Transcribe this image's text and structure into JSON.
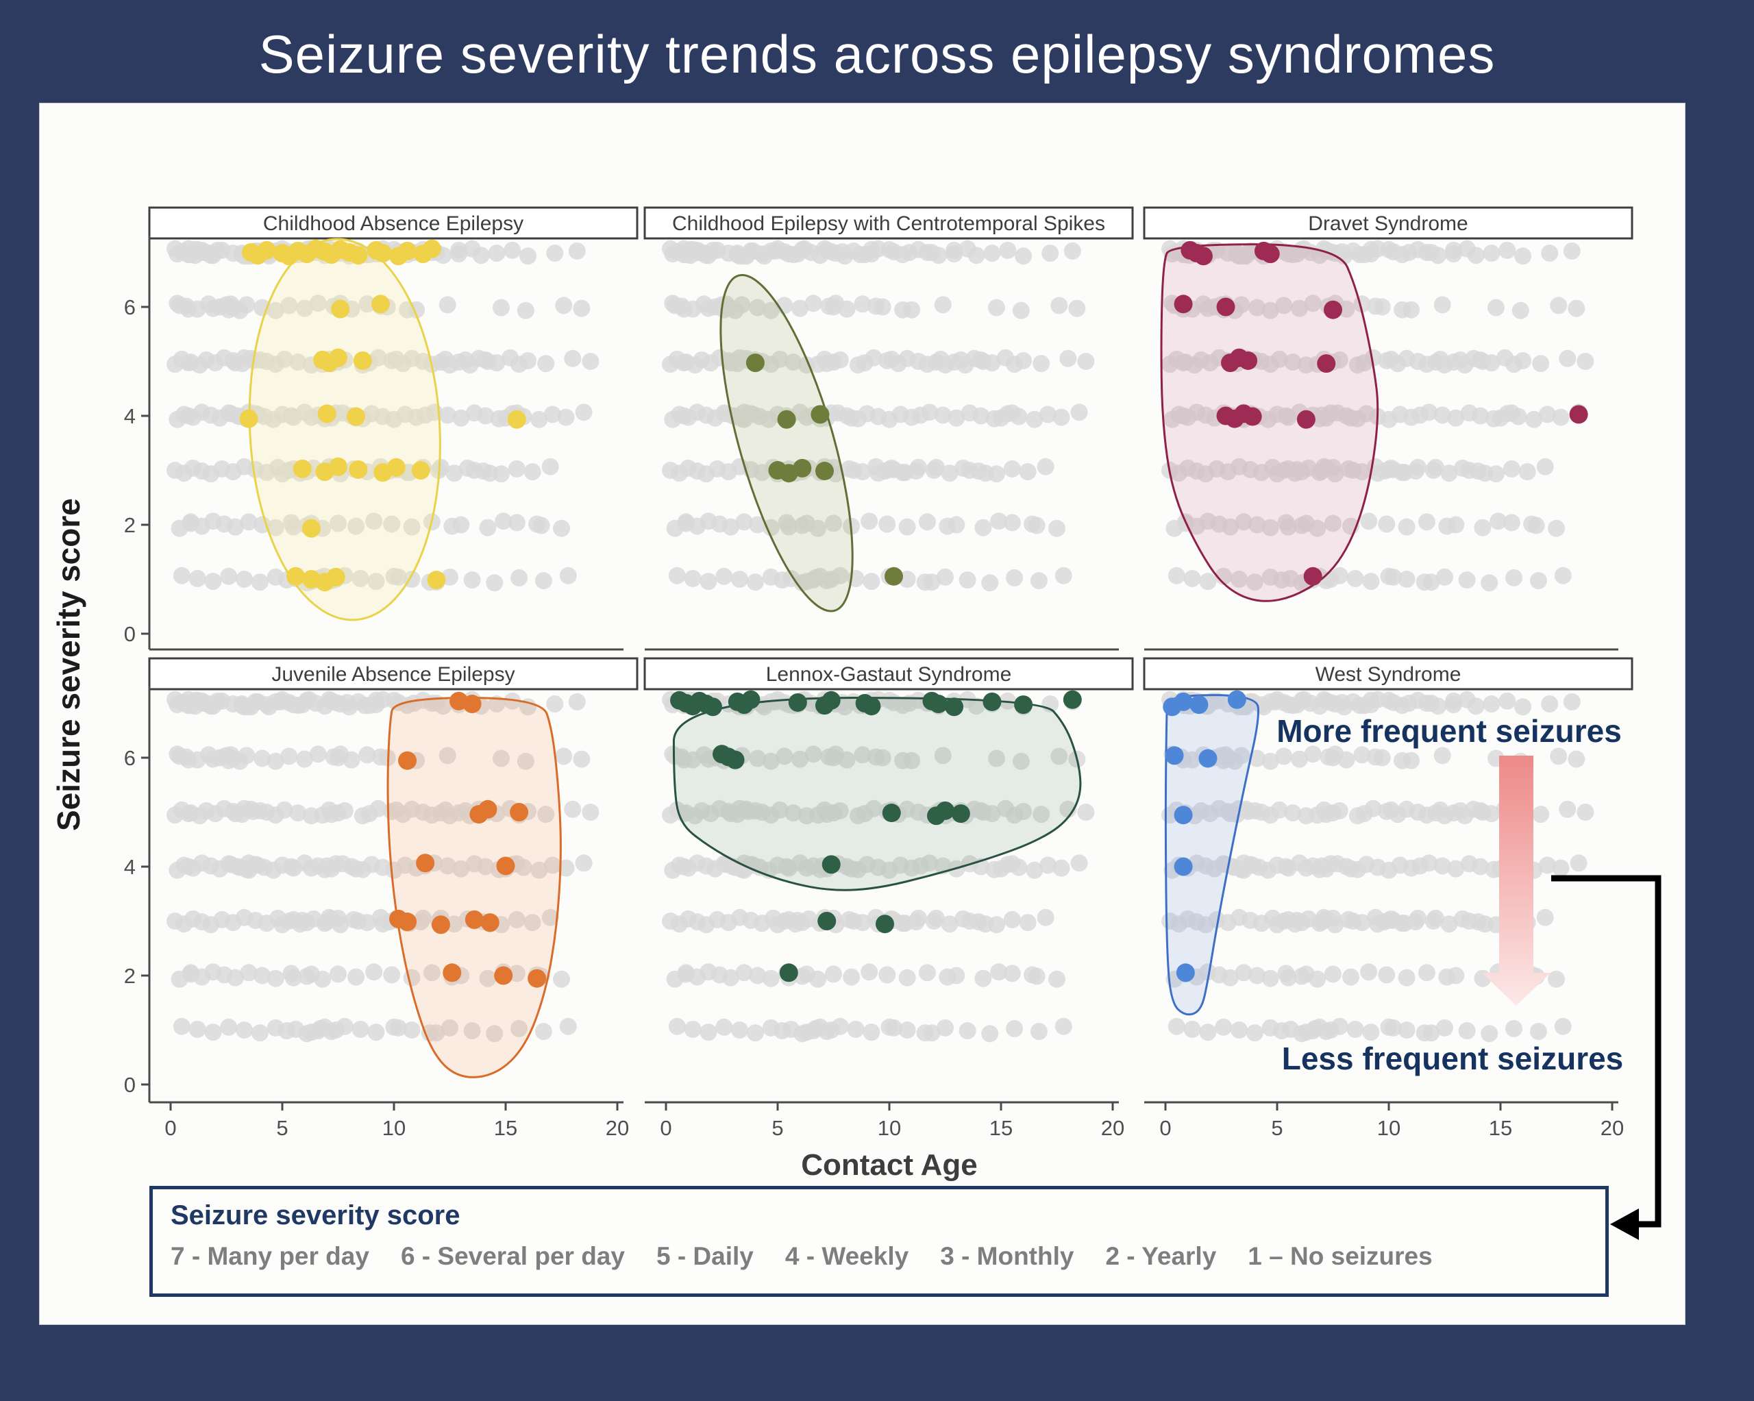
{
  "title": "Seizure severity trends across epilepsy syndromes",
  "axes": {
    "x_label": "Contact Age",
    "y_label": "Seizure severity score",
    "x_ticks": [
      0,
      5,
      10,
      15,
      20
    ],
    "y_ticks": [
      0,
      2,
      4,
      6
    ],
    "x_range": [
      0,
      20
    ],
    "y_range": [
      0,
      7.5
    ],
    "grid": false
  },
  "annotations": {
    "more": "More frequent seizures",
    "less": "Less frequent seizures"
  },
  "legend": {
    "title": "Seizure severity score",
    "items": [
      "7 - Many per day",
      "6 - Several per day",
      "5 - Daily",
      "4 - Weekly",
      "3 - Monthly",
      "2 - Yearly",
      "1 – No seizures"
    ]
  },
  "colors": {
    "background_navy": "#2d3b61",
    "card_white": "#fcfcfb",
    "gray_dot": "#d9d9d9",
    "axis_line": "#4a4a4a",
    "tick_text": "#4e4e4e",
    "strip_border": "#3f3f3f",
    "strip_text": "#3d3d3d",
    "navy_text": "#1f3864",
    "legend_item_gray": "#7e7e7e",
    "arrow_red_top": "#ec8a88",
    "arrow_red_bottom": "#fce8e7",
    "connector_black": "#000000"
  },
  "chart_data": {
    "type": "scatter",
    "subtype": "faceted jittered strip plot, severity (1-7) vs contact age, gray = full cohort, color = syndrome subgroup with hull",
    "xlabel": "Contact Age",
    "ylabel": "Seizure severity score",
    "x_ticks": [
      0,
      5,
      10,
      15,
      20
    ],
    "y_ticks": [
      0,
      2,
      4,
      6
    ],
    "gray_cohort_points": {
      "7": [
        0.2,
        0.5,
        0.8,
        1.1,
        1.5,
        1.9,
        2.3,
        2.8,
        3.3,
        4.9,
        5.5,
        6.2,
        7.9,
        8.7,
        10.0,
        10.9,
        13.9,
        15.3,
        17.2
      ],
      "6": [
        0.3,
        0.7,
        1.2,
        1.7,
        2.2,
        2.6,
        3.4,
        4.1,
        4.7,
        5.3,
        6.0,
        6.6,
        7.3,
        8.1,
        8.8,
        9.7,
        11.0,
        12.4,
        14.8,
        15.9,
        17.6,
        18.4
      ],
      "5": [
        0.2,
        0.5,
        0.9,
        1.3,
        1.6,
        2.0,
        2.4,
        2.8,
        3.2,
        3.6,
        4.3,
        4.7,
        5.1,
        5.7,
        6.3,
        7.8,
        8.9,
        9.3,
        9.9,
        10.4,
        10.8,
        11.3,
        11.7,
        12.3,
        12.9,
        13.4,
        14.1,
        14.6,
        15.2,
        16.0,
        16.8,
        18.0,
        18.8
      ],
      "4": [
        0.3,
        0.6,
        1.0,
        1.4,
        1.8,
        2.2,
        2.6,
        3.0,
        3.4,
        3.8,
        4.2,
        4.6,
        5.0,
        5.5,
        6.0,
        6.6,
        7.2,
        7.7,
        8.1,
        8.6,
        9.0,
        9.5,
        10.0,
        10.5,
        11.0,
        11.8,
        12.4,
        13.0,
        13.6,
        14.1,
        14.7,
        15.3,
        15.8,
        16.5,
        17.1,
        17.7
      ],
      "3": [
        0.2,
        0.6,
        1.0,
        1.4,
        1.8,
        2.3,
        2.8,
        3.3,
        3.8,
        4.3,
        4.8,
        5.3,
        5.8,
        6.4,
        7.0,
        7.6,
        8.2,
        8.8,
        9.4,
        10.0,
        10.7,
        11.3,
        12.0,
        12.7,
        13.3,
        14.0,
        14.8,
        15.5,
        16.2,
        17.0
      ],
      "2": [
        0.4,
        0.9,
        1.4,
        1.9,
        2.4,
        2.9,
        3.5,
        4.1,
        4.7,
        5.4,
        6.1,
        6.8,
        7.5,
        8.3,
        9.1,
        9.9,
        10.8,
        11.7,
        13.0,
        14.2,
        15.5,
        16.6,
        17.5
      ],
      "1": [
        0.5,
        1.2,
        1.9,
        2.6,
        3.3,
        4.0,
        4.7,
        5.2,
        6.1,
        6.7,
        7.2,
        7.8,
        8.5,
        9.2,
        10.0,
        10.8,
        11.6,
        12.5,
        13.5,
        14.5,
        15.6,
        16.7,
        17.8
      ]
    },
    "panels": [
      {
        "name": "Childhood Absence Epilepsy",
        "dot_color": "#f0d24a",
        "hull_stroke": "#e8d34a",
        "hull_fill": "rgba(246,233,150,0.22)",
        "hull": {
          "type": "ellipse",
          "cx": 7.8,
          "cy": 3.75,
          "rx": 4.25,
          "ry": 3.5,
          "rot": -3
        },
        "points": {
          "7": [
            3.6,
            3.9,
            4.3,
            5.0,
            5.3,
            5.7,
            6.1,
            6.5,
            6.9,
            7.2,
            7.6,
            8.0,
            8.4,
            9.2,
            9.5,
            10.2,
            10.6,
            11.3,
            11.7
          ],
          "6": [
            7.6,
            9.4
          ],
          "5": [
            6.8,
            7.1,
            7.5,
            8.6
          ],
          "4": [
            3.5,
            7.0,
            8.3,
            15.5
          ],
          "3": [
            5.9,
            6.9,
            7.5,
            8.4,
            9.5,
            10.1,
            11.2
          ],
          "2": [
            6.3
          ],
          "1": [
            5.6,
            6.3,
            6.9,
            7.4,
            11.9
          ]
        }
      },
      {
        "name": "Childhood Epilepsy with Centrotemporal Spikes",
        "dot_color": "#6e7d3c",
        "hull_stroke": "#5f7036",
        "hull_fill": "rgba(150,160,90,0.16)",
        "hull": {
          "type": "ellipse",
          "cx": 5.4,
          "cy": 3.5,
          "rx": 2.1,
          "ry": 3.2,
          "rot": -16
        },
        "points": {
          "5": [
            4.0
          ],
          "4": [
            5.4,
            6.9
          ],
          "3": [
            5.0,
            5.5,
            6.1,
            7.1
          ],
          "1": [
            10.2
          ]
        }
      },
      {
        "name": "Dravet Syndrome",
        "dot_color": "#9e2b53",
        "hull_stroke": "#8f2148",
        "hull_fill": "rgba(190,80,120,0.13)",
        "hull": {
          "type": "polygon",
          "pts": [
            [
              0.2,
              7.15
            ],
            [
              7.7,
              7.15
            ],
            [
              8.6,
              6.3
            ],
            [
              9.3,
              5.0
            ],
            [
              9.6,
              4.0
            ],
            [
              9.0,
              2.4
            ],
            [
              7.8,
              1.25
            ],
            [
              6.0,
              0.7
            ],
            [
              4.2,
              0.55
            ],
            [
              2.6,
              0.85
            ],
            [
              1.4,
              1.6
            ],
            [
              0.3,
              2.6
            ],
            [
              -0.15,
              3.9
            ],
            [
              -0.2,
              5.5
            ],
            [
              -0.1,
              6.8
            ]
          ]
        },
        "points": {
          "7": [
            1.1,
            1.4,
            1.7,
            4.4,
            4.7
          ],
          "6": [
            0.8,
            2.7,
            7.5
          ],
          "5": [
            2.9,
            3.3,
            3.7,
            7.2
          ],
          "4": [
            2.7,
            3.1,
            3.5,
            3.9,
            6.3,
            18.5
          ],
          "1": [
            6.6
          ]
        }
      },
      {
        "name": "Juvenile Absence Epilepsy",
        "dot_color": "#e0762f",
        "hull_stroke": "#d96c28",
        "hull_fill": "rgba(240,150,80,0.15)",
        "hull": {
          "type": "polygon",
          "pts": [
            [
              10.0,
              7.1
            ],
            [
              16.6,
              7.1
            ],
            [
              17.1,
              6.5
            ],
            [
              17.4,
              5.3
            ],
            [
              17.5,
              4.2
            ],
            [
              17.3,
              2.9
            ],
            [
              16.8,
              1.7
            ],
            [
              15.9,
              0.7
            ],
            [
              14.6,
              0.18
            ],
            [
              13.0,
              0.1
            ],
            [
              11.8,
              0.5
            ],
            [
              10.9,
              1.5
            ],
            [
              10.2,
              2.8
            ],
            [
              9.8,
              4.2
            ],
            [
              9.7,
              5.5
            ],
            [
              9.8,
              6.6
            ]
          ]
        },
        "points": {
          "7": [
            12.9,
            13.5
          ],
          "6": [
            10.6
          ],
          "5": [
            13.8,
            14.2,
            15.6
          ],
          "4": [
            11.4,
            15.0
          ],
          "3": [
            10.2,
            10.6,
            12.1,
            13.6,
            14.3
          ],
          "2": [
            12.6,
            14.9,
            16.4
          ]
        }
      },
      {
        "name": "Lennox-Gastaut Syndrome",
        "dot_color": "#2f5f45",
        "hull_stroke": "#2a5240",
        "hull_fill": "rgba(80,130,100,0.13)",
        "hull": {
          "type": "polygon",
          "pts": [
            [
              0.35,
              7.1
            ],
            [
              16.8,
              7.1
            ],
            [
              17.9,
              6.6
            ],
            [
              18.5,
              5.9
            ],
            [
              18.6,
              5.3
            ],
            [
              17.9,
              4.8
            ],
            [
              16.5,
              4.45
            ],
            [
              14.5,
              4.15
            ],
            [
              12.0,
              3.85
            ],
            [
              9.5,
              3.6
            ],
            [
              7.5,
              3.55
            ],
            [
              5.5,
              3.7
            ],
            [
              3.5,
              4.0
            ],
            [
              1.8,
              4.4
            ],
            [
              0.6,
              4.8
            ],
            [
              0.35,
              5.5
            ]
          ]
        },
        "points": {
          "7": [
            0.6,
            0.9,
            1.2,
            1.5,
            1.8,
            2.1,
            3.2,
            3.5,
            3.8,
            5.9,
            7.1,
            7.4,
            8.9,
            9.2,
            11.9,
            12.2,
            12.9,
            14.6,
            16.0,
            18.2
          ],
          "6": [
            2.5,
            2.8,
            3.1
          ],
          "5": [
            10.1,
            12.1,
            12.5,
            13.2
          ],
          "4": [
            7.4
          ],
          "3": [
            7.2,
            9.8
          ],
          "2": [
            5.5
          ]
        }
      },
      {
        "name": "West Syndrome",
        "dot_color": "#4e86d8",
        "hull_stroke": "#3e6fc8",
        "hull_fill": "rgba(120,160,220,0.18)",
        "hull": {
          "type": "polygon",
          "pts": [
            [
              0.1,
              7.15
            ],
            [
              4.1,
              7.15
            ],
            [
              4.2,
              6.7
            ],
            [
              3.6,
              5.6
            ],
            [
              2.9,
              4.2
            ],
            [
              2.3,
              2.9
            ],
            [
              1.9,
              1.9
            ],
            [
              1.6,
              1.35
            ],
            [
              0.9,
              1.25
            ],
            [
              0.25,
              1.5
            ],
            [
              0.05,
              2.5
            ],
            [
              0.0,
              5.0
            ],
            [
              0.05,
              6.8
            ]
          ]
        },
        "points": {
          "7": [
            0.3,
            0.8,
            1.5,
            3.2
          ],
          "6": [
            0.4,
            1.9
          ],
          "5": [
            0.8
          ],
          "4": [
            0.8
          ],
          "2": [
            0.9
          ]
        }
      }
    ]
  }
}
